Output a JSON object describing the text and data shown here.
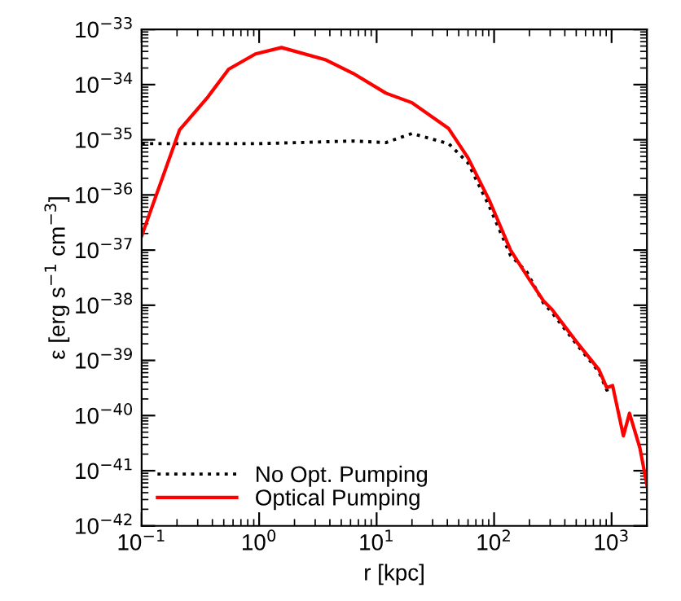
{
  "chart_data": {
    "type": "line",
    "xlabel": "r [kpc]",
    "ylabel": "ε [erg s$^{−1}$ cm$^{−3}$]",
    "log": "xy",
    "xlim": [
      0.1,
      2000
    ],
    "ylim": [
      1e-42,
      1e-33
    ],
    "xticks": [
      {
        "value": 0.1,
        "label": "10$^{−1}$"
      },
      {
        "value": 1,
        "label": "10$^{0}$"
      },
      {
        "value": 10,
        "label": "10$^{1}$"
      },
      {
        "value": 100,
        "label": "10$^{2}$"
      },
      {
        "value": 1000,
        "label": "10$^{3}$"
      }
    ],
    "yticks": [
      {
        "value": 1e-42,
        "label": "10$^{−42}$"
      },
      {
        "value": 1e-41,
        "label": "10$^{−41}$"
      },
      {
        "value": 1e-40,
        "label": "10$^{−40}$"
      },
      {
        "value": 1e-39,
        "label": "10$^{−39}$"
      },
      {
        "value": 1e-38,
        "label": "10$^{−38}$"
      },
      {
        "value": 1e-37,
        "label": "10$^{−37}$"
      },
      {
        "value": 1e-36,
        "label": "10$^{−36}$"
      },
      {
        "value": 1e-35,
        "label": "10$^{−35}$"
      },
      {
        "value": 1e-34,
        "label": "10$^{−34}$"
      },
      {
        "value": 1e-33,
        "label": "10$^{−33}$"
      }
    ],
    "grid": false,
    "legend": "bottom left",
    "series": [
      {
        "name": "No Opt. Pumping",
        "color": "#000000",
        "line_style": "dotted",
        "x": [
          0.1,
          1,
          6.3,
          12,
          20,
          41,
          60,
          91,
          138,
          190,
          263,
          309,
          500,
          780,
          910,
          1020
        ],
        "values": [
          8.5e-36,
          8.5e-36,
          9.5e-36,
          8.9e-36,
          1.3e-35,
          8.5e-36,
          3.8e-36,
          6.2e-37,
          8e-38,
          4e-38,
          1.1e-38,
          7.5e-39,
          2e-39,
          6.2e-40,
          2.9e-40,
          3.2e-40
        ]
      },
      {
        "name": "Optical Pumping",
        "color": "#ff0000",
        "line_style": "solid",
        "x": [
          0.1,
          0.21,
          0.36,
          0.55,
          0.93,
          1.55,
          3.7,
          6.3,
          12,
          20,
          41,
          60,
          91,
          138,
          200,
          263,
          309,
          500,
          780,
          910,
          1020,
          1260,
          1420,
          1740,
          2000
        ],
        "values": [
          1.8e-37,
          1.5e-35,
          5.7e-35,
          1.9e-34,
          3.6e-34,
          4.7e-34,
          2.8e-34,
          1.6e-34,
          7e-35,
          4.7e-35,
          1.6e-35,
          4.7e-36,
          8e-37,
          1e-37,
          2.9e-38,
          1.2e-38,
          8.5e-39,
          2.2e-39,
          6.8e-40,
          3.2e-40,
          3.5e-40,
          4.3e-41,
          1.1e-40,
          2.6e-41,
          5.5e-42
        ]
      }
    ]
  }
}
